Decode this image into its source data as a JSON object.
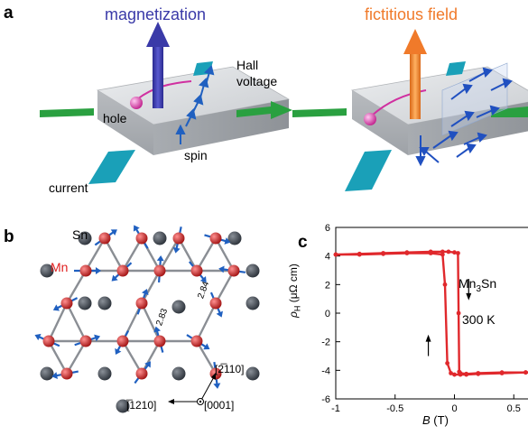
{
  "panels": {
    "a": {
      "label": "a",
      "left_title": "magnetization",
      "right_title": "fictitious field",
      "hall_voltage": [
        "Hall",
        "voltage"
      ],
      "hole": "hole",
      "spin": "spin",
      "current": "current"
    },
    "b": {
      "label": "b",
      "sn": "Sn",
      "mn": "Mn",
      "bond_short": "2.83",
      "bond_long": "2.84",
      "dir_2110": "[2̅110]",
      "dir_1210": "[̅1210]",
      "dir_0001": "[0001]"
    },
    "c": {
      "label": "c",
      "material_base": "Mn",
      "material_sub": "3",
      "material_tail": "Sn",
      "temperature": "300 K"
    }
  },
  "colors": {
    "magnetization": "#3a3aa8",
    "fictitious": "#f07a2a",
    "mn_atom": "#d42020",
    "sn_atom": "#4a5058",
    "spin_arrow": "#2060c0",
    "data": "#e0282c",
    "current": "#1aa0b8",
    "hall": "#2aa040"
  },
  "chart_data": {
    "type": "line",
    "xlabel_var": "B",
    "xlabel_unit": "(T)",
    "ylabel_var": "ρ",
    "ylabel_sub": "H",
    "ylabel_unit": "(μΩ cm)",
    "xlim": [
      -1,
      1
    ],
    "ylim": [
      -6,
      6
    ],
    "x_ticks": [
      -1,
      -0.5,
      0,
      0.5
    ],
    "x_tick_labels": [
      "-1",
      "-0.5",
      "0",
      "0.5"
    ],
    "y_ticks": [
      -6,
      -4,
      -2,
      0,
      2,
      4,
      6
    ],
    "y_tick_labels": [
      "-6",
      "-4",
      "-2",
      "0",
      "2",
      "4",
      "6"
    ],
    "series": [
      {
        "x": [
          -1,
          -0.8,
          -0.6,
          -0.4,
          -0.2,
          -0.1,
          -0.05,
          0,
          0.03,
          0.035,
          0.04,
          0.05,
          0.1,
          0.2,
          0.4,
          0.6,
          0.8,
          1
        ],
        "y": [
          4.1,
          4.15,
          4.2,
          4.25,
          4.3,
          4.3,
          4.3,
          4.25,
          4.2,
          0,
          -4.1,
          -4.2,
          -4.25,
          -4.2,
          -4.15,
          -4.15,
          -4.1,
          -4.1
        ]
      },
      {
        "x": [
          1,
          0.8,
          0.6,
          0.4,
          0.2,
          0.1,
          0.05,
          0,
          -0.03,
          -0.06,
          -0.08,
          -0.1,
          -0.2,
          -0.4,
          -0.6,
          -0.8,
          -1
        ],
        "y": [
          -4.1,
          -4.15,
          -4.15,
          -4.2,
          -4.25,
          -4.3,
          -4.3,
          -4.3,
          -4.2,
          -3.5,
          2,
          4.1,
          4.2,
          4.2,
          4.15,
          4.1,
          4.1
        ]
      }
    ]
  }
}
